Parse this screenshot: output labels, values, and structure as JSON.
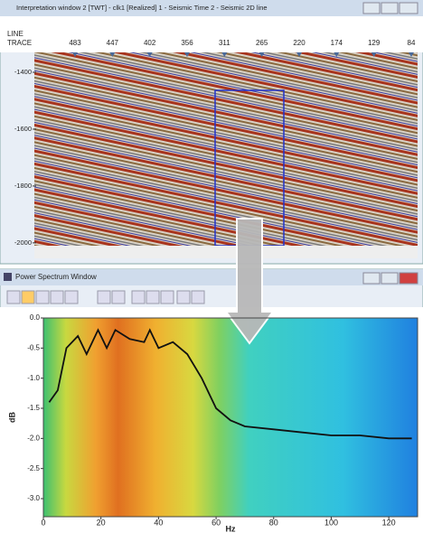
{
  "top_window": {
    "title": "Interpretation window 2 [TWT] - clk1 [Realized] 1 - Seismic Time 2 - Seismic 2D line",
    "header_labels": [
      "LINE",
      "TRACE"
    ],
    "traces": [
      "483",
      "447",
      "402",
      "356",
      "311",
      "265",
      "220",
      "174",
      "129",
      "84"
    ],
    "ylim": [
      -1330,
      -2010
    ],
    "yticks": [
      -1400,
      -1600,
      -1800,
      -2000
    ]
  },
  "bottom_window": {
    "title": "Power Spectrum Window"
  },
  "spectrum": {
    "xlabel": "Hz",
    "ylabel": "dB",
    "xlim": [
      0,
      130
    ],
    "ylim": [
      -3.3,
      0
    ],
    "xticks": [
      0,
      20,
      40,
      60,
      80,
      100,
      120
    ],
    "yticks": [
      {
        "value": 0,
        "label": "0.0"
      },
      -0.5,
      {
        "value": -1,
        "label": "-1.0"
      },
      -1.5,
      {
        "value": -2,
        "label": "-2.0"
      },
      -2.5,
      {
        "value": -3,
        "label": "-3.0"
      }
    ],
    "x": [
      2,
      5,
      8,
      12,
      15,
      19,
      22,
      25,
      30,
      35,
      37,
      40,
      45,
      50,
      55,
      60,
      65,
      70,
      80,
      90,
      100,
      110,
      120,
      128
    ],
    "y": [
      -1.4,
      -1.2,
      -0.5,
      -0.3,
      -0.6,
      -0.2,
      -0.5,
      -0.2,
      -0.35,
      -0.4,
      -0.2,
      -0.5,
      -0.4,
      -0.6,
      -1.0,
      -1.5,
      -1.7,
      -1.8,
      -1.85,
      -1.9,
      -1.95,
      -1.95,
      -2.0,
      -2.0
    ],
    "line_color": "#111111"
  }
}
